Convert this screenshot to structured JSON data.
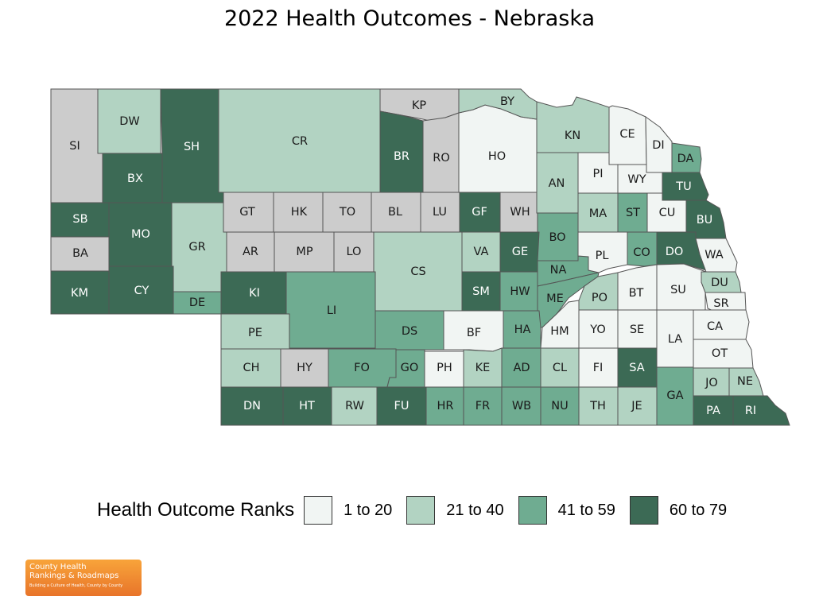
{
  "title": "2022 Health Outcomes - Nebraska",
  "legend": {
    "title": "Health Outcome Ranks",
    "bins": [
      {
        "key": "c1",
        "label": "1 to 20",
        "color": "#f1f5f3"
      },
      {
        "key": "c2",
        "label": "21 to 40",
        "color": "#b2d3c2"
      },
      {
        "key": "c3",
        "label": "41 to 59",
        "color": "#6fac91"
      },
      {
        "key": "c4",
        "label": "60 to 79",
        "color": "#3c6a55"
      }
    ],
    "no_rank_color": "#cccccc"
  },
  "logo": {
    "line1": "County Health",
    "line2": "Rankings & Roadmaps",
    "tagline": "Building a Culture of Health, County by County"
  },
  "counties": [
    {
      "abbr": "SI",
      "bin": "na"
    },
    {
      "abbr": "DW",
      "bin": "c2"
    },
    {
      "abbr": "SH",
      "bin": "c4"
    },
    {
      "abbr": "BX",
      "bin": "c4"
    },
    {
      "abbr": "CR",
      "bin": "c2"
    },
    {
      "abbr": "KP",
      "bin": "na"
    },
    {
      "abbr": "BR",
      "bin": "c4"
    },
    {
      "abbr": "RO",
      "bin": "na"
    },
    {
      "abbr": "HO",
      "bin": "c1"
    },
    {
      "abbr": "BY",
      "bin": "c2"
    },
    {
      "abbr": "KN",
      "bin": "c2"
    },
    {
      "abbr": "CE",
      "bin": "c1"
    },
    {
      "abbr": "DI",
      "bin": "c1"
    },
    {
      "abbr": "DA",
      "bin": "c3"
    },
    {
      "abbr": "SB",
      "bin": "c4"
    },
    {
      "abbr": "MO",
      "bin": "c4"
    },
    {
      "abbr": "BA",
      "bin": "na"
    },
    {
      "abbr": "KM",
      "bin": "c4"
    },
    {
      "abbr": "CY",
      "bin": "c4"
    },
    {
      "abbr": "GR",
      "bin": "c2"
    },
    {
      "abbr": "DE",
      "bin": "c3"
    },
    {
      "abbr": "GT",
      "bin": "na"
    },
    {
      "abbr": "HK",
      "bin": "na"
    },
    {
      "abbr": "TO",
      "bin": "na"
    },
    {
      "abbr": "BL",
      "bin": "na"
    },
    {
      "abbr": "LU",
      "bin": "na"
    },
    {
      "abbr": "GF",
      "bin": "c4"
    },
    {
      "abbr": "WH",
      "bin": "na"
    },
    {
      "abbr": "AN",
      "bin": "c2"
    },
    {
      "abbr": "PI",
      "bin": "c1"
    },
    {
      "abbr": "WY",
      "bin": "c1"
    },
    {
      "abbr": "TU",
      "bin": "c4"
    },
    {
      "abbr": "AR",
      "bin": "na"
    },
    {
      "abbr": "MP",
      "bin": "na"
    },
    {
      "abbr": "LO",
      "bin": "na"
    },
    {
      "abbr": "CS",
      "bin": "c2"
    },
    {
      "abbr": "VA",
      "bin": "c2"
    },
    {
      "abbr": "GE",
      "bin": "c4"
    },
    {
      "abbr": "BO",
      "bin": "c3"
    },
    {
      "abbr": "MA",
      "bin": "c2"
    },
    {
      "abbr": "ST",
      "bin": "c3"
    },
    {
      "abbr": "CU",
      "bin": "c1"
    },
    {
      "abbr": "BU",
      "bin": "c4"
    },
    {
      "abbr": "KI",
      "bin": "c4"
    },
    {
      "abbr": "LI",
      "bin": "c3"
    },
    {
      "abbr": "SM",
      "bin": "c4"
    },
    {
      "abbr": "HW",
      "bin": "c3"
    },
    {
      "abbr": "NA",
      "bin": "c3"
    },
    {
      "abbr": "PL",
      "bin": "c1"
    },
    {
      "abbr": "CO",
      "bin": "c3"
    },
    {
      "abbr": "DO",
      "bin": "c4"
    },
    {
      "abbr": "WA",
      "bin": "c1"
    },
    {
      "abbr": "ME",
      "bin": "c3"
    },
    {
      "abbr": "PO",
      "bin": "c2"
    },
    {
      "abbr": "BT",
      "bin": "c1"
    },
    {
      "abbr": "SU",
      "bin": "c1"
    },
    {
      "abbr": "DU",
      "bin": "c2"
    },
    {
      "abbr": "SR",
      "bin": "c1"
    },
    {
      "abbr": "PE",
      "bin": "c2"
    },
    {
      "abbr": "DS",
      "bin": "c3"
    },
    {
      "abbr": "BF",
      "bin": "c1"
    },
    {
      "abbr": "HA",
      "bin": "c3"
    },
    {
      "abbr": "HM",
      "bin": "c1"
    },
    {
      "abbr": "YO",
      "bin": "c1"
    },
    {
      "abbr": "SE",
      "bin": "c1"
    },
    {
      "abbr": "LA",
      "bin": "c1"
    },
    {
      "abbr": "CA",
      "bin": "c1"
    },
    {
      "abbr": "OT",
      "bin": "c1"
    },
    {
      "abbr": "CH",
      "bin": "c2"
    },
    {
      "abbr": "HY",
      "bin": "na"
    },
    {
      "abbr": "FO",
      "bin": "c3"
    },
    {
      "abbr": "GO",
      "bin": "c3"
    },
    {
      "abbr": "PH",
      "bin": "c1"
    },
    {
      "abbr": "KE",
      "bin": "c2"
    },
    {
      "abbr": "AD",
      "bin": "c3"
    },
    {
      "abbr": "CL",
      "bin": "c2"
    },
    {
      "abbr": "FI",
      "bin": "c1"
    },
    {
      "abbr": "SA",
      "bin": "c4"
    },
    {
      "abbr": "GA",
      "bin": "c3"
    },
    {
      "abbr": "JO",
      "bin": "c2"
    },
    {
      "abbr": "NE",
      "bin": "c2"
    },
    {
      "abbr": "DN",
      "bin": "c4"
    },
    {
      "abbr": "HT",
      "bin": "c4"
    },
    {
      "abbr": "RW",
      "bin": "c2"
    },
    {
      "abbr": "FU",
      "bin": "c4"
    },
    {
      "abbr": "HR",
      "bin": "c3"
    },
    {
      "abbr": "FR",
      "bin": "c3"
    },
    {
      "abbr": "WB",
      "bin": "c3"
    },
    {
      "abbr": "NU",
      "bin": "c3"
    },
    {
      "abbr": "TH",
      "bin": "c2"
    },
    {
      "abbr": "JE",
      "bin": "c2"
    },
    {
      "abbr": "PA",
      "bin": "c4"
    },
    {
      "abbr": "RI",
      "bin": "c4"
    }
  ]
}
